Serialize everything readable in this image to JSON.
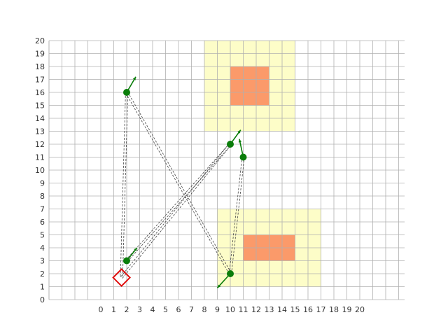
{
  "chart_data": {
    "type": "scatter",
    "x_ticks": [
      "0",
      "1",
      "2",
      "3",
      "4",
      "5",
      "6",
      "7",
      "8",
      "9",
      "10",
      "11",
      "12",
      "13",
      "14",
      "15",
      "16",
      "17",
      "18",
      "19",
      "20"
    ],
    "y_ticks": [
      "0",
      "1",
      "2",
      "3",
      "4",
      "5",
      "6",
      "7",
      "8",
      "9",
      "10",
      "11",
      "12",
      "13",
      "14",
      "15",
      "16",
      "17",
      "18",
      "19",
      "20"
    ],
    "xlim": [
      0,
      20
    ],
    "ylim": [
      0,
      20
    ],
    "grid": true,
    "zones": [
      {
        "kind": "outer",
        "x": [
          8,
          15
        ],
        "y": [
          13,
          20
        ],
        "color": "#fdfdc8"
      },
      {
        "kind": "inner",
        "x": [
          10,
          13
        ],
        "y": [
          15,
          18
        ],
        "color": "#fb9a6a"
      },
      {
        "kind": "outer",
        "x": [
          9,
          17
        ],
        "y": [
          1,
          7
        ],
        "color": "#fdfdc8"
      },
      {
        "kind": "inner",
        "x": [
          11,
          15
        ],
        "y": [
          3,
          5
        ],
        "color": "#fb9a6a"
      }
    ],
    "agents": [
      {
        "x": 2,
        "y": 16,
        "dx": 0.7,
        "dy": 1.2
      },
      {
        "x": 2,
        "y": 3,
        "dx": 0.8,
        "dy": 1.0
      },
      {
        "x": 10,
        "y": 12,
        "dx": 0.8,
        "dy": 1.1
      },
      {
        "x": 11,
        "y": 11,
        "dx": -0.3,
        "dy": 1.4
      },
      {
        "x": 10,
        "y": 2,
        "dx": -1.0,
        "dy": -1.1
      }
    ],
    "links": [
      {
        "from": [
          2,
          16
        ],
        "to": [
          1.6,
          1.7
        ]
      },
      {
        "from": [
          2,
          16
        ],
        "to": [
          10,
          2
        ]
      },
      {
        "from": [
          2,
          3
        ],
        "to": [
          10,
          12
        ]
      },
      {
        "from": [
          1.6,
          1.7
        ],
        "to": [
          10,
          12
        ]
      },
      {
        "from": [
          10,
          2
        ],
        "to": [
          11,
          11
        ]
      }
    ],
    "target": {
      "x": 1.6,
      "y": 1.7
    },
    "colors": {
      "agent": "#0a7d0a",
      "target": "#e01010",
      "grid": "#b0b0b0",
      "link": "#444444"
    }
  }
}
